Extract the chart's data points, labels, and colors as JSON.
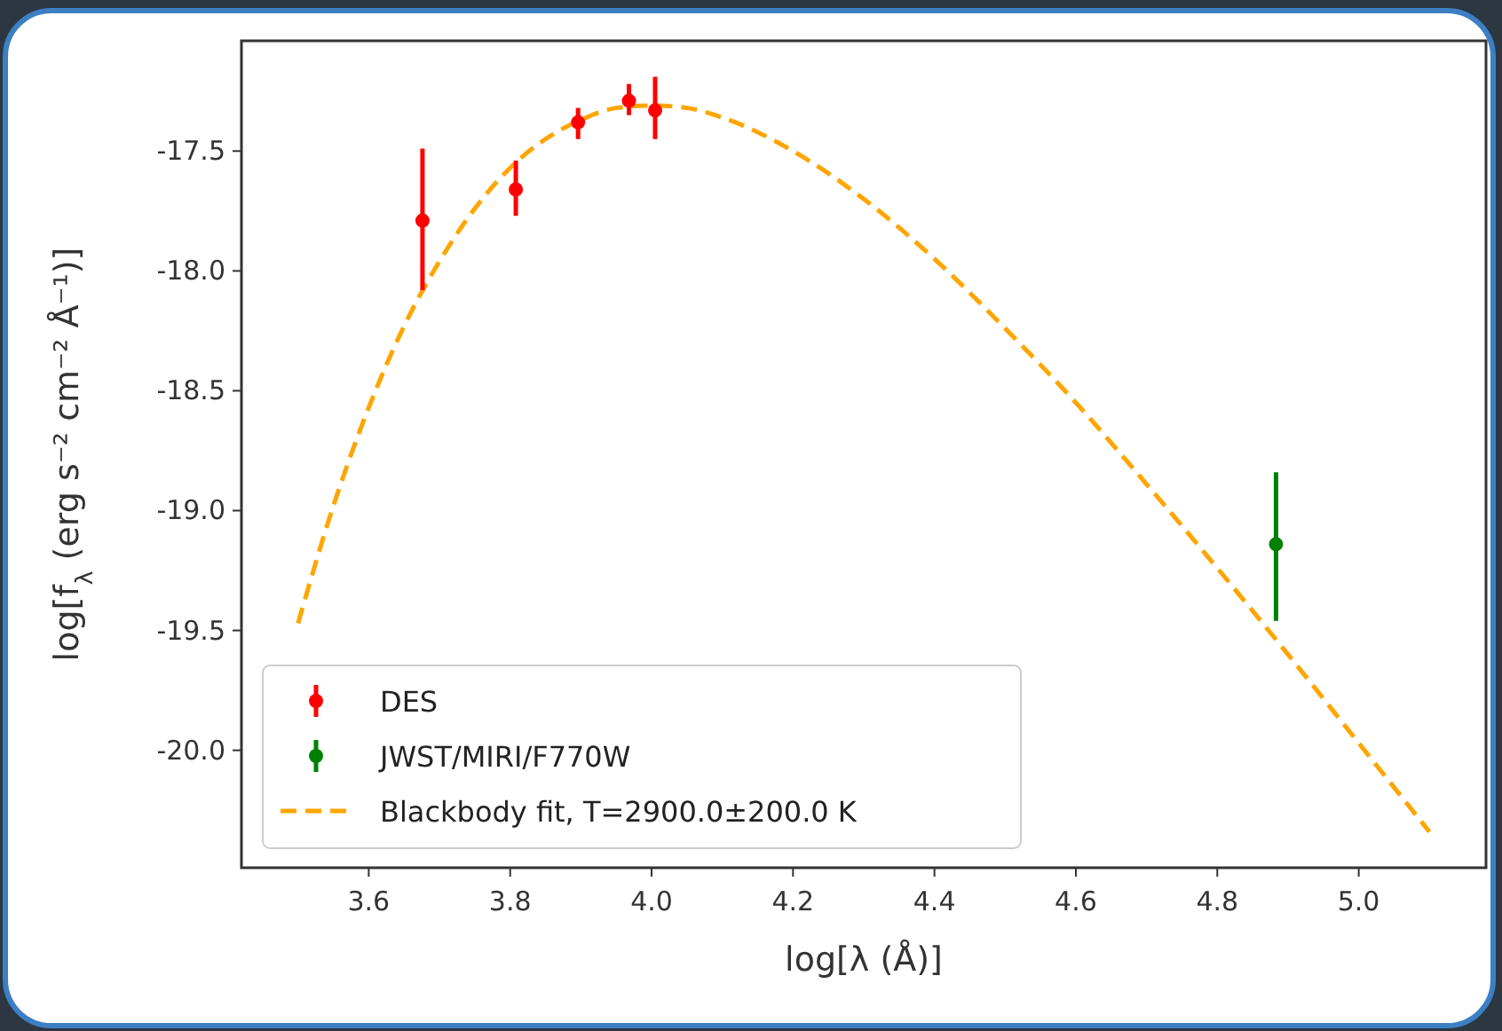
{
  "chart_data": {
    "type": "scatter",
    "xlabel": "log[λ (Å)]",
    "ylabel": "log[f$_{λ}$ (erg s⁻² cm⁻² Å⁻¹)]",
    "xlim": [
      3.42,
      5.18
    ],
    "ylim": [
      -20.49,
      -17.04
    ],
    "xticks": [
      {
        "value": 3.6,
        "label": "3.6"
      },
      {
        "value": 3.8,
        "label": "3.8"
      },
      {
        "value": 4.0,
        "label": "4.0"
      },
      {
        "value": 4.2,
        "label": "4.2"
      },
      {
        "value": 4.4,
        "label": "4.4"
      },
      {
        "value": 4.6,
        "label": "4.6"
      },
      {
        "value": 4.8,
        "label": "4.8"
      },
      {
        "value": 5.0,
        "label": "5.0"
      }
    ],
    "yticks": [
      {
        "value": -20.0,
        "label": "-20.0"
      },
      {
        "value": -19.5,
        "label": "-19.5"
      },
      {
        "value": -19.0,
        "label": "-19.0"
      },
      {
        "value": -18.5,
        "label": "-18.5"
      },
      {
        "value": -18.0,
        "label": "-18.0"
      },
      {
        "value": -17.5,
        "label": "-17.5"
      }
    ],
    "grid": false,
    "legend": "bottom left",
    "series": [
      {
        "name": "DES",
        "color": "#ff0000",
        "marker": "circle",
        "x": [
          3.676,
          3.808,
          3.896,
          3.968,
          4.005
        ],
        "values": [
          -17.79,
          -17.66,
          -17.38,
          -17.29,
          -17.33
        ],
        "errors": [
          [
            -18.08,
            -17.49
          ],
          [
            -17.77,
            -17.54
          ],
          [
            -17.45,
            -17.32
          ],
          [
            -17.35,
            -17.22
          ],
          [
            -17.45,
            -17.19
          ]
        ]
      },
      {
        "name": "JWST/MIRI/F770W",
        "color": "#008000",
        "marker": "circle",
        "x": [
          4.883
        ],
        "values": [
          -19.14
        ],
        "errors": [
          [
            -19.46,
            -18.84
          ]
        ]
      },
      {
        "name": "Blackbody fit, T=2900.0±200.0 K",
        "type": "line",
        "color": "#ffa500",
        "line_style": "dashed",
        "marker": "none",
        "x": [
          3.5,
          3.55,
          3.6,
          3.65,
          3.7,
          3.75,
          3.8,
          3.85,
          3.9,
          3.95,
          4.0,
          4.05,
          4.1,
          4.2,
          4.3,
          4.4,
          4.5,
          4.6,
          4.7,
          4.8,
          4.9,
          5.0,
          5.1
        ],
        "values": [
          -19.47,
          -18.98,
          -18.57,
          -18.23,
          -17.96,
          -17.74,
          -17.57,
          -17.45,
          -17.37,
          -17.32,
          -17.31,
          -17.32,
          -17.36,
          -17.5,
          -17.7,
          -17.95,
          -18.24,
          -18.55,
          -18.89,
          -19.24,
          -19.6,
          -19.97,
          -20.34
        ]
      }
    ]
  }
}
